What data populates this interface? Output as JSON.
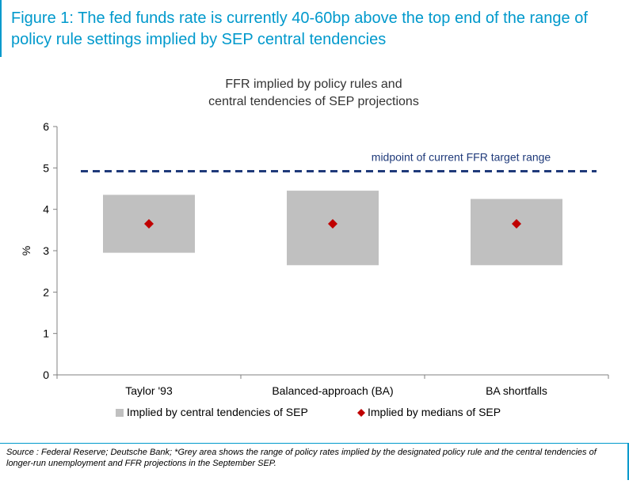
{
  "figure": {
    "title": "Figure 1: The fed funds rate is currently 40-60bp above the top end of the range of policy rule settings implied by SEP central tendencies"
  },
  "chart_data": {
    "type": "bar",
    "title_lines": [
      "FFR implied by policy rules and",
      "central tendencies of SEP projections"
    ],
    "ylabel": "%",
    "ylim": [
      0,
      6
    ],
    "yticks": [
      0,
      1,
      2,
      3,
      4,
      5,
      6
    ],
    "categories": [
      "Taylor '93",
      "Balanced-approach (BA)",
      "BA shortfalls"
    ],
    "series": [
      {
        "name": "Implied by central tendencies of SEP",
        "kind": "range",
        "color": "#c0c0c0",
        "low": [
          2.95,
          2.65,
          2.65
        ],
        "high": [
          4.35,
          4.45,
          4.25
        ]
      },
      {
        "name": "Implied by medians of SEP",
        "kind": "marker",
        "color": "#c00000",
        "values": [
          3.65,
          3.65,
          3.65
        ]
      }
    ],
    "reference_line": {
      "label": "midpoint of current FFR target range",
      "value": 4.92,
      "color": "#1f3a7a",
      "style": "dashed"
    },
    "legend_position": "bottom",
    "grid": false
  },
  "source": {
    "text": "Source : Federal Reserve; Deutsche Bank; *Grey area shows the range of policy rates implied by the designated policy rule and the central tendencies of longer-run unemployment and FFR projections in the September SEP."
  }
}
